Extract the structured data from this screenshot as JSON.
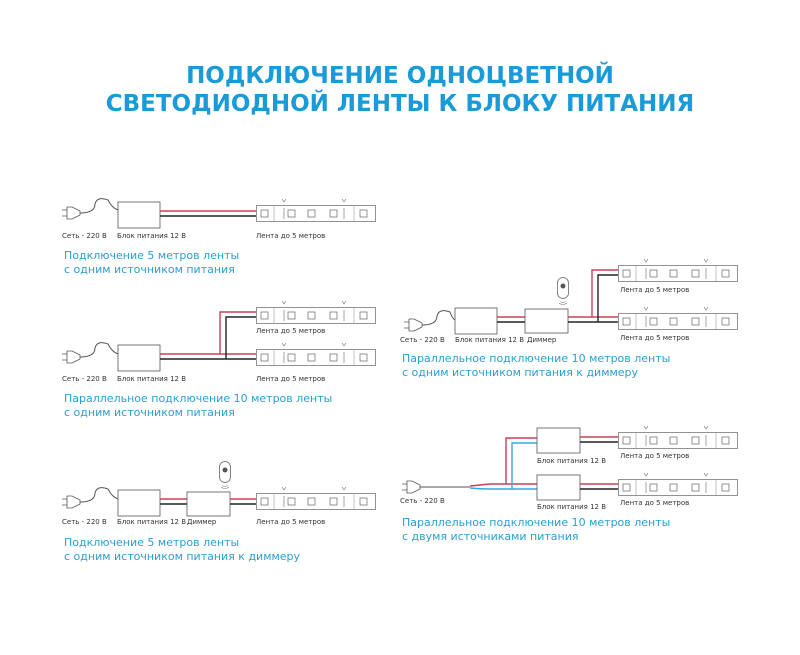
{
  "title": {
    "line1": "ПОДКЛЮЧЕНИЕ ОДНОЦВЕТНОЙ",
    "line2": "СВЕТОДИОДНОЙ ЛЕНТЫ К БЛОКУ ПИТАНИЯ"
  },
  "colors": {
    "accent": "#1a9bd7",
    "wire_positive": "#c9405a",
    "wire_negative": "#222222",
    "wire_neutral": "#35a9d8"
  },
  "labels": {
    "mains": "Сеть - 220 В",
    "psu": "Блок питания 12 В",
    "dimmer": "Диммер",
    "strip": "Лента до 5 метров"
  },
  "diagrams": [
    {
      "caption": [
        "Подключение 5 метров ленты",
        "с одним источником питания"
      ]
    },
    {
      "caption": [
        "Параллельное подключение 10 метров ленты",
        "с одним источником питания"
      ]
    },
    {
      "caption": [
        "Подключение 5 метров ленты",
        "с одним источником питания к диммеру"
      ]
    },
    {
      "caption": [
        "Параллельное подключение 10 метров ленты",
        "с одним источником питания к диммеру"
      ]
    },
    {
      "caption": [
        "Параллельное подключение 10 метров ленты",
        "с двумя источниками питания"
      ]
    }
  ]
}
